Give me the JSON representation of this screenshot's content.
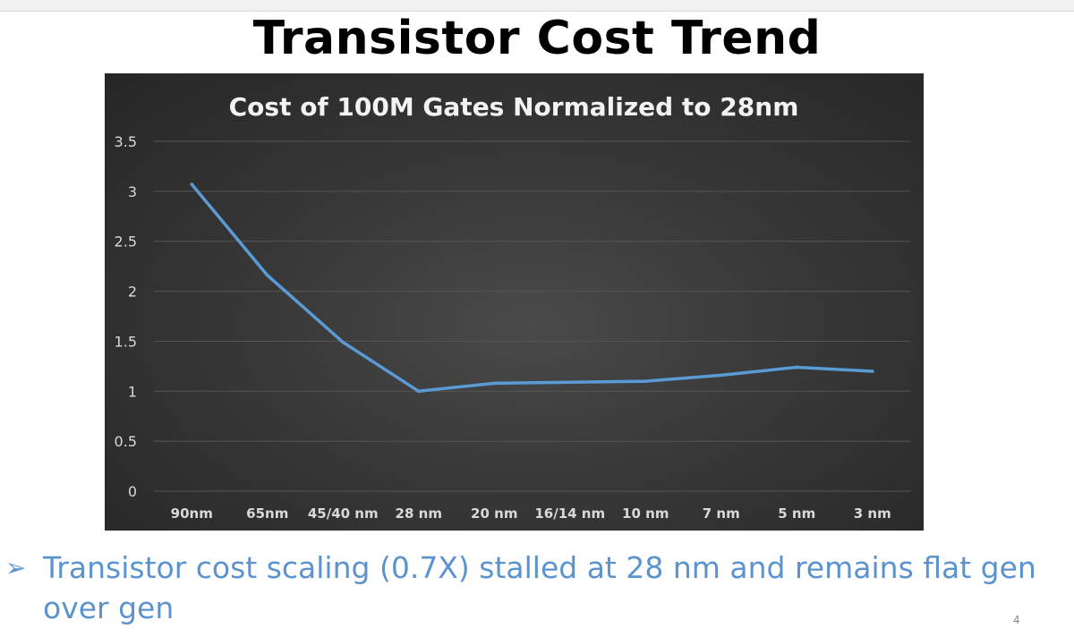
{
  "slide": {
    "title": "Transistor Cost Trend",
    "bullet_marker": "➢",
    "bullet_text": "Transistor cost scaling (0.7X) stalled at 28 nm and remains flat gen over gen",
    "page_number": "4"
  },
  "chart_data": {
    "type": "line",
    "title": "Cost of 100M Gates Normalized to 28nm",
    "xlabel": "",
    "ylabel": "",
    "categories": [
      "90nm",
      "65nm",
      "45/40 nm",
      "28 nm",
      "20 nm",
      "16/14 nm",
      "10 nm",
      "7 nm",
      "5 nm",
      "3 nm"
    ],
    "series": [
      {
        "values": [
          3.07,
          2.16,
          1.49,
          1.0,
          1.08,
          1.09,
          1.1,
          1.16,
          1.24,
          1.2
        ]
      }
    ],
    "ylim": [
      0,
      3.5
    ],
    "yticks": [
      "0",
      "0.5",
      "1",
      "1.5",
      "2",
      "2.5",
      "3",
      "3.5"
    ],
    "ytick_values": [
      0,
      0.5,
      1,
      1.5,
      2,
      2.5,
      3,
      3.5
    ],
    "grid": true,
    "legend": "none",
    "colors": {
      "line": "#5b9bd5",
      "grid": "#555555",
      "text": "#d9d9d9",
      "title": "#f2f2f2"
    }
  }
}
